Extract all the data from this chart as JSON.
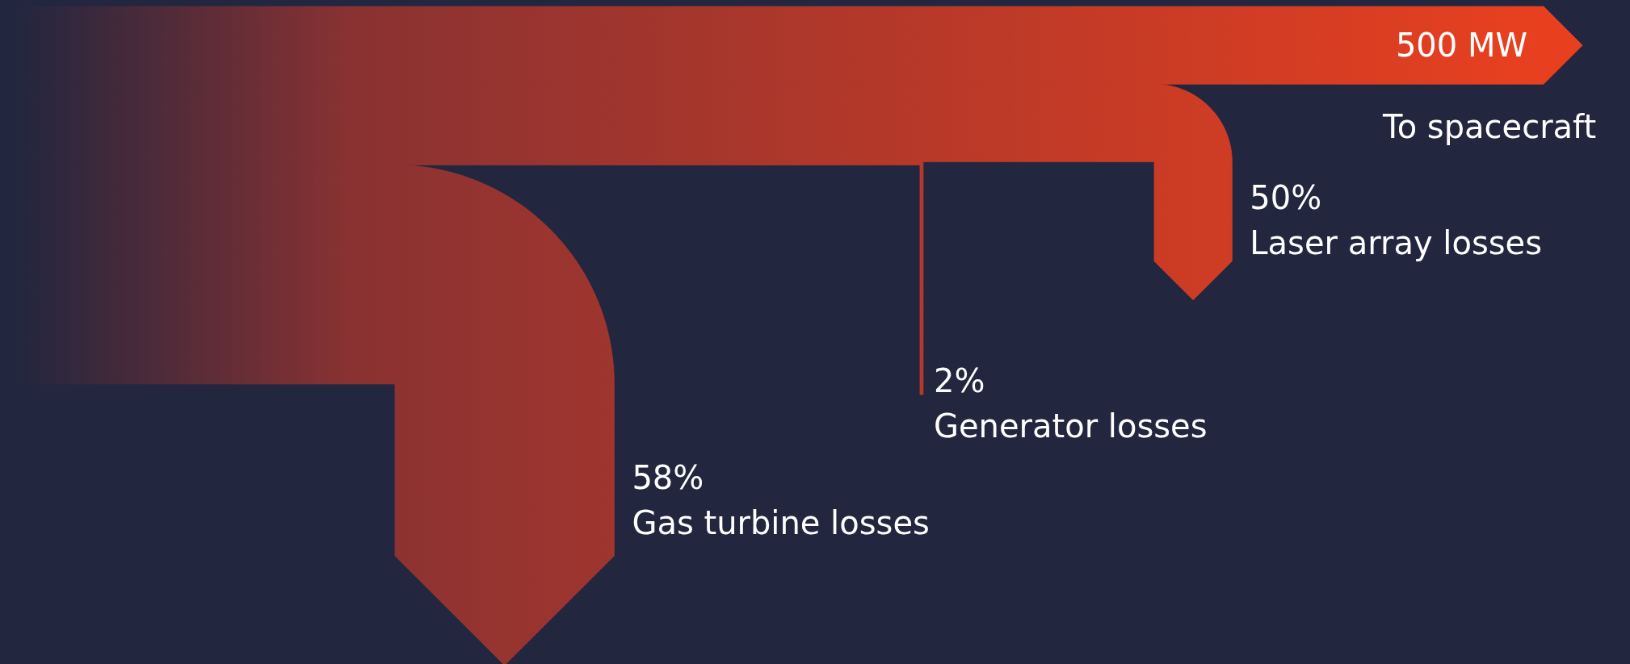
{
  "chart_data": {
    "type": "other",
    "categories": [
      "Gas turbine losses",
      "Generator losses",
      "Laser array losses",
      "To spacecraft"
    ],
    "values": [
      58,
      2,
      50,
      500
    ],
    "value_labels": [
      "58%",
      "2%",
      "50%",
      "500 MW"
    ],
    "color": "#e8401f"
  }
}
